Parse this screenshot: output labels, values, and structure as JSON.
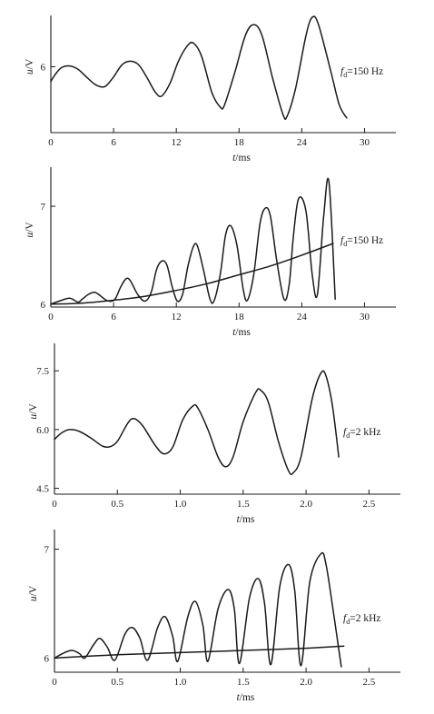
{
  "chart_data": [
    {
      "type": "line",
      "xlabel": {
        "var": "t",
        "unit": "/ms"
      },
      "ylabel": {
        "var": "u",
        "unit": "/V"
      },
      "annotation": {
        "var": "f",
        "sub": "d",
        "text": "=150 Hz"
      },
      "xlim": [
        0,
        33
      ],
      "ylim": [
        4.2,
        7.4
      ],
      "xticks": [
        "0",
        "6",
        "12",
        "18",
        "24",
        "30"
      ],
      "xtick_values": [
        0,
        6,
        12,
        18,
        24,
        30
      ],
      "yticks": [
        "6"
      ],
      "ytick_values": [
        6
      ],
      "series": [
        {
          "x": [
            0,
            0.4,
            1.0,
            1.8,
            2.6,
            3.4,
            4.2,
            4.8,
            5.3,
            6.0,
            6.8,
            7.6,
            8.4,
            9.2,
            10.0,
            10.6,
            11.4,
            12.2,
            13.0,
            13.6,
            14.4,
            15.4,
            16.2,
            16.6,
            17.6,
            18.6,
            19.4,
            20.2,
            21.2,
            22.2,
            22.6,
            23.4,
            24.4,
            25.0,
            25.6,
            26.8,
            27.6,
            28.3
          ],
          "y": [
            5.6,
            5.78,
            5.97,
            6.02,
            5.93,
            5.72,
            5.52,
            5.45,
            5.48,
            5.72,
            6.05,
            6.15,
            6.05,
            5.7,
            5.3,
            5.2,
            5.55,
            6.15,
            6.55,
            6.65,
            6.3,
            5.3,
            4.9,
            4.95,
            5.85,
            6.85,
            7.15,
            6.85,
            5.7,
            4.7,
            4.65,
            5.4,
            6.85,
            7.35,
            7.15,
            5.85,
            4.95,
            4.6
          ]
        }
      ]
    },
    {
      "type": "line",
      "xlabel": {
        "var": "t",
        "unit": "/ms"
      },
      "ylabel": {
        "var": "u",
        "unit": "/V"
      },
      "annotation": {
        "var": "f",
        "sub": "d",
        "text": "=150 Hz"
      },
      "xlim": [
        0,
        33
      ],
      "ylim": [
        5.97,
        7.4
      ],
      "xticks": [
        "0",
        "6",
        "12",
        "18",
        "24",
        "30"
      ],
      "xtick_values": [
        0,
        6,
        12,
        18,
        24,
        30
      ],
      "yticks": [
        "6",
        "7"
      ],
      "ytick_values": [
        6,
        7
      ],
      "series": [
        {
          "x": [
            0,
            0.8,
            1.8,
            2.6,
            3.0,
            3.6,
            4.2,
            4.8,
            5.3,
            5.8,
            6.2,
            6.7,
            7.2,
            7.6,
            8.3,
            9.0,
            9.6,
            10.1,
            10.6,
            11.1,
            11.6,
            12.1,
            12.6,
            13.1,
            13.6,
            14.0,
            14.6,
            15.2,
            15.6,
            16.2,
            16.7,
            17.2,
            17.8,
            18.4,
            18.8,
            19.4,
            20.0,
            20.5,
            21.0,
            21.6,
            22.3,
            22.8,
            23.2,
            23.7,
            24.4,
            25.0,
            25.5,
            26.1,
            26.6,
            27.2
          ],
          "y": [
            6.0,
            6.03,
            6.06,
            6.02,
            6.05,
            6.1,
            6.12,
            6.08,
            6.04,
            6.03,
            6.06,
            6.18,
            6.26,
            6.24,
            6.1,
            6.03,
            6.12,
            6.35,
            6.44,
            6.4,
            6.18,
            6.03,
            6.1,
            6.38,
            6.58,
            6.6,
            6.35,
            6.06,
            6.03,
            6.3,
            6.7,
            6.8,
            6.6,
            6.15,
            6.04,
            6.3,
            6.82,
            6.98,
            6.9,
            6.45,
            6.05,
            6.2,
            6.7,
            7.08,
            6.95,
            6.3,
            6.1,
            6.9,
            7.25,
            6.05
          ]
        },
        {
          "x": [
            0,
            3,
            6,
            9,
            12,
            15,
            18,
            21,
            24,
            27
          ],
          "y": [
            6.0,
            6.01,
            6.04,
            6.08,
            6.14,
            6.21,
            6.3,
            6.39,
            6.5,
            6.62
          ]
        }
      ]
    },
    {
      "type": "line",
      "xlabel": {
        "var": "t",
        "unit": "/ms"
      },
      "ylabel": {
        "var": "u",
        "unit": "/V"
      },
      "annotation": {
        "var": "f",
        "sub": "d",
        "text": "=2 kHz"
      },
      "xlim": [
        0,
        2.75
      ],
      "ylim": [
        4.35,
        8.2
      ],
      "xticks": [
        "0",
        "0.5",
        "1.0",
        "1.5",
        "2.0",
        "2.5"
      ],
      "xtick_values": [
        0,
        0.5,
        1.0,
        1.5,
        2.0,
        2.5
      ],
      "yticks": [
        "4.5",
        "6.0",
        "7.5"
      ],
      "ytick_values": [
        4.5,
        6.0,
        7.5
      ],
      "series": [
        {
          "x": [
            0,
            0.06,
            0.12,
            0.2,
            0.3,
            0.38,
            0.44,
            0.5,
            0.58,
            0.63,
            0.7,
            0.8,
            0.87,
            0.94,
            1.02,
            1.1,
            1.14,
            1.22,
            1.3,
            1.36,
            1.42,
            1.5,
            1.6,
            1.64,
            1.7,
            1.78,
            1.86,
            1.9,
            1.96,
            2.05,
            2.12,
            2.16,
            2.21,
            2.26
          ],
          "y": [
            5.75,
            5.92,
            6.0,
            5.95,
            5.76,
            5.58,
            5.56,
            5.7,
            6.15,
            6.28,
            6.1,
            5.6,
            5.38,
            5.55,
            6.25,
            6.6,
            6.55,
            6.0,
            5.3,
            5.05,
            5.3,
            6.2,
            6.95,
            7.0,
            6.7,
            5.7,
            4.95,
            4.9,
            5.3,
            6.8,
            7.45,
            7.35,
            6.6,
            5.3
          ]
        }
      ]
    },
    {
      "type": "line",
      "xlabel": {
        "var": "t",
        "unit": "/ms"
      },
      "ylabel": {
        "var": "u",
        "unit": "/V"
      },
      "annotation": {
        "var": "f",
        "sub": "d",
        "text": "=2 kHz"
      },
      "xlim": [
        0,
        2.75
      ],
      "ylim": [
        5.87,
        7.18
      ],
      "xticks": [
        "0",
        "0.5",
        "1.0",
        "1.5",
        "2.0",
        "2.5"
      ],
      "xtick_values": [
        0,
        0.5,
        1.0,
        1.5,
        2.0,
        2.5
      ],
      "yticks": [
        "6",
        "7"
      ],
      "ytick_values": [
        6,
        7
      ],
      "series": [
        {
          "x": [
            0,
            0.08,
            0.14,
            0.2,
            0.24,
            0.31,
            0.36,
            0.42,
            0.48,
            0.56,
            0.62,
            0.68,
            0.74,
            0.82,
            0.88,
            0.94,
            0.98,
            1.06,
            1.12,
            1.18,
            1.22,
            1.3,
            1.38,
            1.43,
            1.47,
            1.55,
            1.62,
            1.67,
            1.72,
            1.79,
            1.86,
            1.91,
            1.96,
            2.03,
            2.12,
            2.16,
            2.22,
            2.28
          ],
          "y": [
            6.0,
            6.05,
            6.07,
            6.04,
            6.0,
            6.12,
            6.18,
            6.1,
            5.98,
            6.22,
            6.28,
            6.18,
            5.98,
            6.28,
            6.38,
            6.2,
            5.97,
            6.38,
            6.52,
            6.3,
            5.97,
            6.45,
            6.63,
            6.45,
            5.95,
            6.55,
            6.73,
            6.5,
            5.94,
            6.65,
            6.86,
            6.62,
            5.93,
            6.7,
            6.96,
            6.85,
            6.4,
            5.92
          ]
        },
        {
          "x": [
            0,
            0.5,
            1.0,
            1.5,
            2.0,
            2.3
          ],
          "y": [
            6.0,
            6.03,
            6.05,
            6.07,
            6.09,
            6.11
          ]
        }
      ]
    }
  ]
}
